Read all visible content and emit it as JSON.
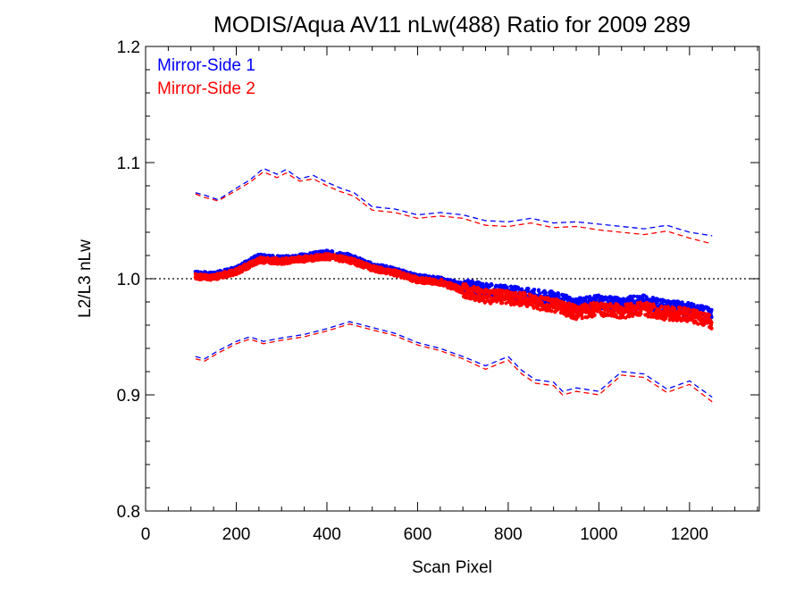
{
  "chart_data": {
    "type": "scatter",
    "title": "MODIS/Aqua AV11 nLw(488) Ratio for 2009 289",
    "xlabel": "Scan Pixel",
    "ylabel": "L2/L3 nLw",
    "xlim": [
      0,
      1354
    ],
    "ylim": [
      0.8,
      1.2
    ],
    "x_ticks": [
      "0",
      "200",
      "400",
      "600",
      "800",
      "1000",
      "1200"
    ],
    "x_tick_values": [
      0,
      200,
      400,
      600,
      800,
      1000,
      1200
    ],
    "y_ticks": [
      "0.8",
      "0.9",
      "1.0",
      "1.1",
      "1.2"
    ],
    "y_tick_values": [
      0.8,
      0.9,
      1.0,
      1.1,
      1.2
    ],
    "reference_line": 1.0,
    "legend_position": "top-left",
    "colors": {
      "ms1": "#0000ff",
      "ms2": "#ff0000"
    },
    "series": [
      {
        "name": "Mirror-Side 1",
        "color": "#0000ff",
        "mean_x": [
          110,
          150,
          200,
          250,
          300,
          350,
          400,
          450,
          500,
          550,
          600,
          650,
          700,
          750,
          800,
          850,
          900,
          950,
          1000,
          1050,
          1100,
          1150,
          1200,
          1250
        ],
        "mean_y": [
          1.004,
          1.003,
          1.008,
          1.019,
          1.017,
          1.019,
          1.022,
          1.019,
          1.011,
          1.007,
          1.001,
          0.999,
          0.994,
          0.99,
          0.988,
          0.986,
          0.983,
          0.977,
          0.98,
          0.978,
          0.98,
          0.975,
          0.974,
          0.968
        ],
        "upper_x": [
          110,
          130,
          160,
          200,
          230,
          260,
          290,
          310,
          340,
          370,
          400,
          430,
          460,
          500,
          550,
          600,
          650,
          700,
          750,
          800,
          850,
          900,
          950,
          1000,
          1050,
          1100,
          1150,
          1200,
          1250
        ],
        "upper_y": [
          1.074,
          1.072,
          1.068,
          1.078,
          1.085,
          1.095,
          1.09,
          1.094,
          1.086,
          1.089,
          1.083,
          1.078,
          1.074,
          1.062,
          1.06,
          1.055,
          1.057,
          1.055,
          1.05,
          1.049,
          1.052,
          1.048,
          1.049,
          1.047,
          1.045,
          1.043,
          1.046,
          1.04,
          1.037
        ],
        "lower_x": [
          110,
          130,
          160,
          200,
          230,
          260,
          300,
          350,
          400,
          450,
          500,
          550,
          600,
          650,
          700,
          750,
          800,
          830,
          860,
          900,
          920,
          950,
          1000,
          1050,
          1100,
          1150,
          1200,
          1250
        ],
        "lower_y": [
          0.933,
          0.931,
          0.938,
          0.946,
          0.95,
          0.946,
          0.949,
          0.952,
          0.957,
          0.963,
          0.958,
          0.953,
          0.945,
          0.94,
          0.933,
          0.925,
          0.933,
          0.921,
          0.913,
          0.911,
          0.903,
          0.906,
          0.903,
          0.92,
          0.918,
          0.905,
          0.912,
          0.898
        ]
      },
      {
        "name": "Mirror-Side 2",
        "color": "#ff0000",
        "mean_x": [
          110,
          150,
          200,
          250,
          300,
          350,
          400,
          450,
          500,
          550,
          600,
          650,
          700,
          750,
          800,
          850,
          900,
          950,
          1000,
          1050,
          1100,
          1150,
          1200,
          1250
        ],
        "mean_y": [
          1.002,
          1.001,
          1.006,
          1.016,
          1.015,
          1.017,
          1.019,
          1.016,
          1.009,
          1.005,
          0.999,
          0.997,
          0.99,
          0.985,
          0.984,
          0.981,
          0.977,
          0.971,
          0.974,
          0.972,
          0.974,
          0.97,
          0.969,
          0.963
        ],
        "upper_x": [
          110,
          130,
          160,
          200,
          230,
          260,
          290,
          310,
          340,
          370,
          400,
          430,
          460,
          500,
          550,
          600,
          650,
          700,
          750,
          800,
          850,
          900,
          950,
          1000,
          1050,
          1100,
          1150,
          1200,
          1250
        ],
        "upper_y": [
          1.073,
          1.07,
          1.067,
          1.076,
          1.083,
          1.092,
          1.087,
          1.091,
          1.084,
          1.086,
          1.08,
          1.075,
          1.071,
          1.059,
          1.057,
          1.052,
          1.054,
          1.052,
          1.046,
          1.045,
          1.048,
          1.044,
          1.045,
          1.042,
          1.04,
          1.038,
          1.041,
          1.035,
          1.03
        ],
        "lower_x": [
          110,
          130,
          160,
          200,
          230,
          260,
          300,
          350,
          400,
          450,
          500,
          550,
          600,
          650,
          700,
          750,
          800,
          830,
          860,
          900,
          920,
          950,
          1000,
          1050,
          1100,
          1150,
          1200,
          1250
        ],
        "lower_y": [
          0.931,
          0.929,
          0.936,
          0.944,
          0.948,
          0.944,
          0.947,
          0.95,
          0.955,
          0.961,
          0.956,
          0.951,
          0.943,
          0.938,
          0.931,
          0.922,
          0.93,
          0.918,
          0.91,
          0.908,
          0.9,
          0.903,
          0.9,
          0.917,
          0.915,
          0.902,
          0.909,
          0.894
        ]
      }
    ]
  }
}
